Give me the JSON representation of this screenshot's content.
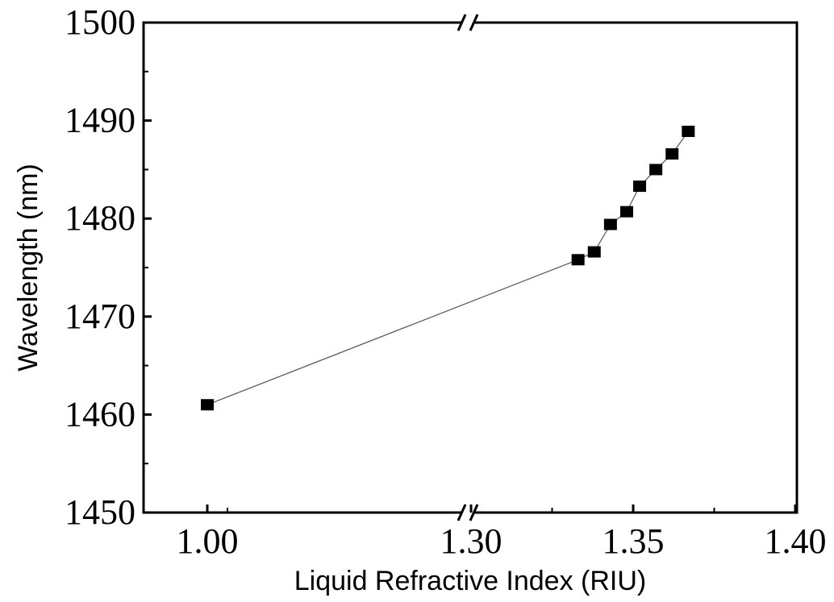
{
  "chart_data": {
    "type": "scatter",
    "xlabel": "Liquid Refractive Index (RIU)",
    "ylabel": "Wavelength (nm)",
    "ylim": [
      1450,
      1500
    ],
    "yticks": [
      1450,
      1460,
      1470,
      1480,
      1490,
      1500
    ],
    "xticks": [
      "1.00",
      "1.30",
      "1.35",
      "1.40"
    ],
    "x_axis_break": {
      "between": [
        1.0,
        1.3
      ]
    },
    "grid": false,
    "legend": "none",
    "marker": "square",
    "connected_line": true,
    "colors": {
      "marker": "#000000",
      "line": "#555555",
      "axis": "#000000"
    },
    "series": [
      {
        "x": [
          1.0,
          1.333,
          1.338,
          1.343,
          1.348,
          1.352,
          1.357,
          1.362,
          1.367
        ],
        "values": [
          1461.0,
          1475.8,
          1476.6,
          1479.4,
          1480.7,
          1483.3,
          1485.0,
          1486.6,
          1488.9
        ]
      }
    ]
  }
}
